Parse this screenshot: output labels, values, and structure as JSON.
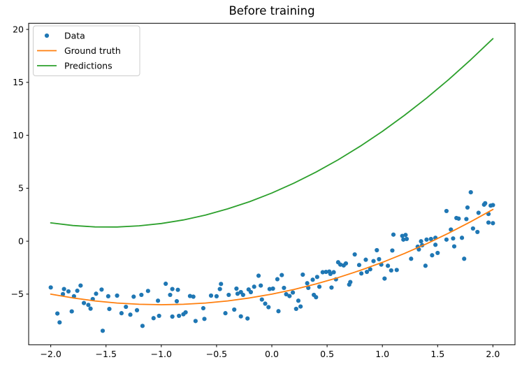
{
  "chart_data": {
    "type": "scatter",
    "title": "Before training",
    "xlabel": "",
    "ylabel": "",
    "xlim": [
      -2.2,
      2.2
    ],
    "ylim": [
      -9.78,
      20.58
    ],
    "grid": false,
    "legend_position": "upper left",
    "background_color": "#ffffff",
    "spine_color": "#000000",
    "legend_border_color": "#cccccc",
    "xticks": [
      {
        "v": -2.0,
        "label": "−2.0"
      },
      {
        "v": -1.5,
        "label": "−1.5"
      },
      {
        "v": -1.0,
        "label": "−1.0"
      },
      {
        "v": -0.5,
        "label": "−0.5"
      },
      {
        "v": 0.0,
        "label": "0.0"
      },
      {
        "v": 0.5,
        "label": "0.5"
      },
      {
        "v": 1.0,
        "label": "1.0"
      },
      {
        "v": 1.5,
        "label": "1.5"
      },
      {
        "v": 2.0,
        "label": "2.0"
      }
    ],
    "yticks": [
      {
        "v": -5,
        "label": "−5"
      },
      {
        "v": 0,
        "label": "0"
      },
      {
        "v": 5,
        "label": "5"
      },
      {
        "v": 10,
        "label": "10"
      },
      {
        "v": 15,
        "label": "15"
      },
      {
        "v": 20,
        "label": "20"
      }
    ],
    "legend": [
      {
        "label": "Data",
        "color": "#1f77b4",
        "marker": "dot"
      },
      {
        "label": "Ground truth",
        "color": "#ff7f0e",
        "marker": "line"
      },
      {
        "label": "Predictions",
        "color": "#2ca02c",
        "marker": "line"
      }
    ],
    "series": [
      {
        "name": "Data",
        "kind": "scatter",
        "color": "#1f77b4",
        "points": [
          [
            -2.0,
            -4.37
          ],
          [
            -1.94,
            -6.83
          ],
          [
            -1.92,
            -7.67
          ],
          [
            -1.89,
            -5.0
          ],
          [
            -1.88,
            -4.52
          ],
          [
            -1.84,
            -4.74
          ],
          [
            -1.81,
            -6.63
          ],
          [
            -1.79,
            -5.2
          ],
          [
            -1.76,
            -4.68
          ],
          [
            -1.73,
            -4.19
          ],
          [
            -1.7,
            -5.84
          ],
          [
            -1.66,
            -6.02
          ],
          [
            -1.64,
            -6.37
          ],
          [
            -1.62,
            -5.47
          ],
          [
            -1.59,
            -4.96
          ],
          [
            -1.54,
            -4.57
          ],
          [
            -1.53,
            -8.46
          ],
          [
            -1.48,
            -5.2
          ],
          [
            -1.47,
            -6.4
          ],
          [
            -1.4,
            -5.14
          ],
          [
            -1.36,
            -6.8
          ],
          [
            -1.32,
            -6.2
          ],
          [
            -1.28,
            -6.94
          ],
          [
            -1.25,
            -5.24
          ],
          [
            -1.22,
            -6.52
          ],
          [
            -1.18,
            -5.07
          ],
          [
            -1.17,
            -8.0
          ],
          [
            -1.12,
            -4.7
          ],
          [
            -1.07,
            -7.27
          ],
          [
            -1.03,
            -5.62
          ],
          [
            -1.02,
            -7.05
          ],
          [
            -0.96,
            -4.02
          ],
          [
            -0.92,
            -5.07
          ],
          [
            -0.9,
            -4.52
          ],
          [
            -0.9,
            -7.12
          ],
          [
            -0.86,
            -5.67
          ],
          [
            -0.85,
            -4.59
          ],
          [
            -0.84,
            -7.05
          ],
          [
            -0.8,
            -6.9
          ],
          [
            -0.78,
            -6.72
          ],
          [
            -0.74,
            -5.18
          ],
          [
            -0.71,
            -5.24
          ],
          [
            -0.69,
            -7.54
          ],
          [
            -0.62,
            -6.33
          ],
          [
            -0.61,
            -7.34
          ],
          [
            -0.55,
            -5.14
          ],
          [
            -0.5,
            -5.2
          ],
          [
            -0.47,
            -4.52
          ],
          [
            -0.46,
            -4.04
          ],
          [
            -0.42,
            -6.8
          ],
          [
            -0.39,
            -5.07
          ],
          [
            -0.34,
            -6.46
          ],
          [
            -0.32,
            -4.48
          ],
          [
            -0.31,
            -4.96
          ],
          [
            -0.28,
            -4.81
          ],
          [
            -0.28,
            -7.1
          ],
          [
            -0.26,
            -5.07
          ],
          [
            -0.22,
            -7.3
          ],
          [
            -0.21,
            -4.56
          ],
          [
            -0.19,
            -4.81
          ],
          [
            -0.16,
            -4.3
          ],
          [
            -0.12,
            -3.26
          ],
          [
            -0.1,
            -4.19
          ],
          [
            -0.09,
            -5.51
          ],
          [
            -0.06,
            -5.9
          ],
          [
            -0.03,
            -6.23
          ],
          [
            -0.02,
            -4.52
          ],
          [
            0.01,
            -4.48
          ],
          [
            0.05,
            -3.59
          ],
          [
            0.06,
            -6.61
          ],
          [
            0.09,
            -3.2
          ],
          [
            0.11,
            -4.41
          ],
          [
            0.13,
            -5.01
          ],
          [
            0.16,
            -5.18
          ],
          [
            0.19,
            -4.85
          ],
          [
            0.22,
            -6.39
          ],
          [
            0.24,
            -5.62
          ],
          [
            0.26,
            -6.17
          ],
          [
            0.28,
            -3.16
          ],
          [
            0.32,
            -3.97
          ],
          [
            0.33,
            -4.41
          ],
          [
            0.37,
            -3.64
          ],
          [
            0.38,
            -5.07
          ],
          [
            0.4,
            -5.29
          ],
          [
            0.41,
            -3.38
          ],
          [
            0.43,
            -4.3
          ],
          [
            0.46,
            -2.93
          ],
          [
            0.49,
            -2.9
          ],
          [
            0.52,
            -2.87
          ],
          [
            0.53,
            -3.09
          ],
          [
            0.54,
            -4.38
          ],
          [
            0.56,
            -2.93
          ],
          [
            0.58,
            -3.6
          ],
          [
            0.6,
            -1.99
          ],
          [
            0.62,
            -2.21
          ],
          [
            0.65,
            -2.29
          ],
          [
            0.67,
            -2.1
          ],
          [
            0.7,
            -4.1
          ],
          [
            0.71,
            -3.86
          ],
          [
            0.75,
            -1.25
          ],
          [
            0.79,
            -2.25
          ],
          [
            0.81,
            -3.05
          ],
          [
            0.85,
            -1.75
          ],
          [
            0.86,
            -2.9
          ],
          [
            0.89,
            -2.65
          ],
          [
            0.92,
            -1.88
          ],
          [
            0.95,
            -0.85
          ],
          [
            0.97,
            -1.7
          ],
          [
            0.99,
            -2.21
          ],
          [
            1.02,
            -3.53
          ],
          [
            1.05,
            -2.32
          ],
          [
            1.08,
            -2.76
          ],
          [
            1.09,
            -0.88
          ],
          [
            1.1,
            0.62
          ],
          [
            1.13,
            -2.72
          ],
          [
            1.18,
            0.5
          ],
          [
            1.19,
            0.15
          ],
          [
            1.21,
            0.59
          ],
          [
            1.22,
            0.21
          ],
          [
            1.26,
            -1.66
          ],
          [
            1.32,
            -0.52
          ],
          [
            1.33,
            -0.78
          ],
          [
            1.35,
            -0.01
          ],
          [
            1.36,
            -0.38
          ],
          [
            1.39,
            -2.32
          ],
          [
            1.4,
            0.15
          ],
          [
            1.44,
            0.21
          ],
          [
            1.45,
            -1.33
          ],
          [
            1.48,
            0.32
          ],
          [
            1.48,
            -0.34
          ],
          [
            1.5,
            -1.11
          ],
          [
            1.58,
            2.85
          ],
          [
            1.58,
            0.15
          ],
          [
            1.62,
            1.1
          ],
          [
            1.64,
            0.26
          ],
          [
            1.65,
            -0.49
          ],
          [
            1.67,
            2.19
          ],
          [
            1.69,
            2.13
          ],
          [
            1.72,
            0.32
          ],
          [
            1.74,
            -1.66
          ],
          [
            1.76,
            2.09
          ],
          [
            1.77,
            3.18
          ],
          [
            1.8,
            4.62
          ],
          [
            1.82,
            1.2
          ],
          [
            1.86,
            0.87
          ],
          [
            1.87,
            2.68
          ],
          [
            1.92,
            3.45
          ],
          [
            1.93,
            3.58
          ],
          [
            1.96,
            1.76
          ],
          [
            1.96,
            2.57
          ],
          [
            1.98,
            3.36
          ],
          [
            2.0,
            3.41
          ],
          [
            2.0,
            1.7
          ]
        ]
      },
      {
        "name": "Ground truth",
        "kind": "line",
        "color": "#ff7f0e",
        "formula": "y = x^2 + 2x - 5",
        "points": [
          [
            -2.0,
            -5.0
          ],
          [
            -1.8,
            -5.36
          ],
          [
            -1.6,
            -5.64
          ],
          [
            -1.4,
            -5.84
          ],
          [
            -1.2,
            -5.96
          ],
          [
            -1.0,
            -6.0
          ],
          [
            -0.8,
            -5.96
          ],
          [
            -0.6,
            -5.84
          ],
          [
            -0.4,
            -5.64
          ],
          [
            -0.2,
            -5.36
          ],
          [
            0.0,
            -5.0
          ],
          [
            0.2,
            -4.56
          ],
          [
            0.4,
            -4.04
          ],
          [
            0.6,
            -3.44
          ],
          [
            0.8,
            -2.76
          ],
          [
            1.0,
            -2.0
          ],
          [
            1.2,
            -1.16
          ],
          [
            1.4,
            -0.24
          ],
          [
            1.6,
            0.76
          ],
          [
            1.8,
            1.84
          ],
          [
            2.0,
            3.0
          ]
        ]
      },
      {
        "name": "Predictions",
        "kind": "line",
        "color": "#2ca02c",
        "formula": "y ≈ 1.47x^2 + 4.35x + 4.55",
        "points": [
          [
            -2.0,
            1.73
          ],
          [
            -1.8,
            1.48
          ],
          [
            -1.6,
            1.35
          ],
          [
            -1.4,
            1.34
          ],
          [
            -1.2,
            1.45
          ],
          [
            -1.0,
            1.67
          ],
          [
            -0.8,
            2.01
          ],
          [
            -0.6,
            2.47
          ],
          [
            -0.4,
            3.05
          ],
          [
            -0.2,
            3.74
          ],
          [
            0.0,
            4.55
          ],
          [
            0.2,
            5.48
          ],
          [
            0.4,
            6.53
          ],
          [
            0.6,
            7.69
          ],
          [
            0.8,
            8.97
          ],
          [
            1.0,
            10.37
          ],
          [
            1.2,
            11.89
          ],
          [
            1.4,
            13.52
          ],
          [
            1.6,
            15.27
          ],
          [
            1.8,
            17.14
          ],
          [
            2.0,
            19.13
          ]
        ]
      }
    ]
  }
}
